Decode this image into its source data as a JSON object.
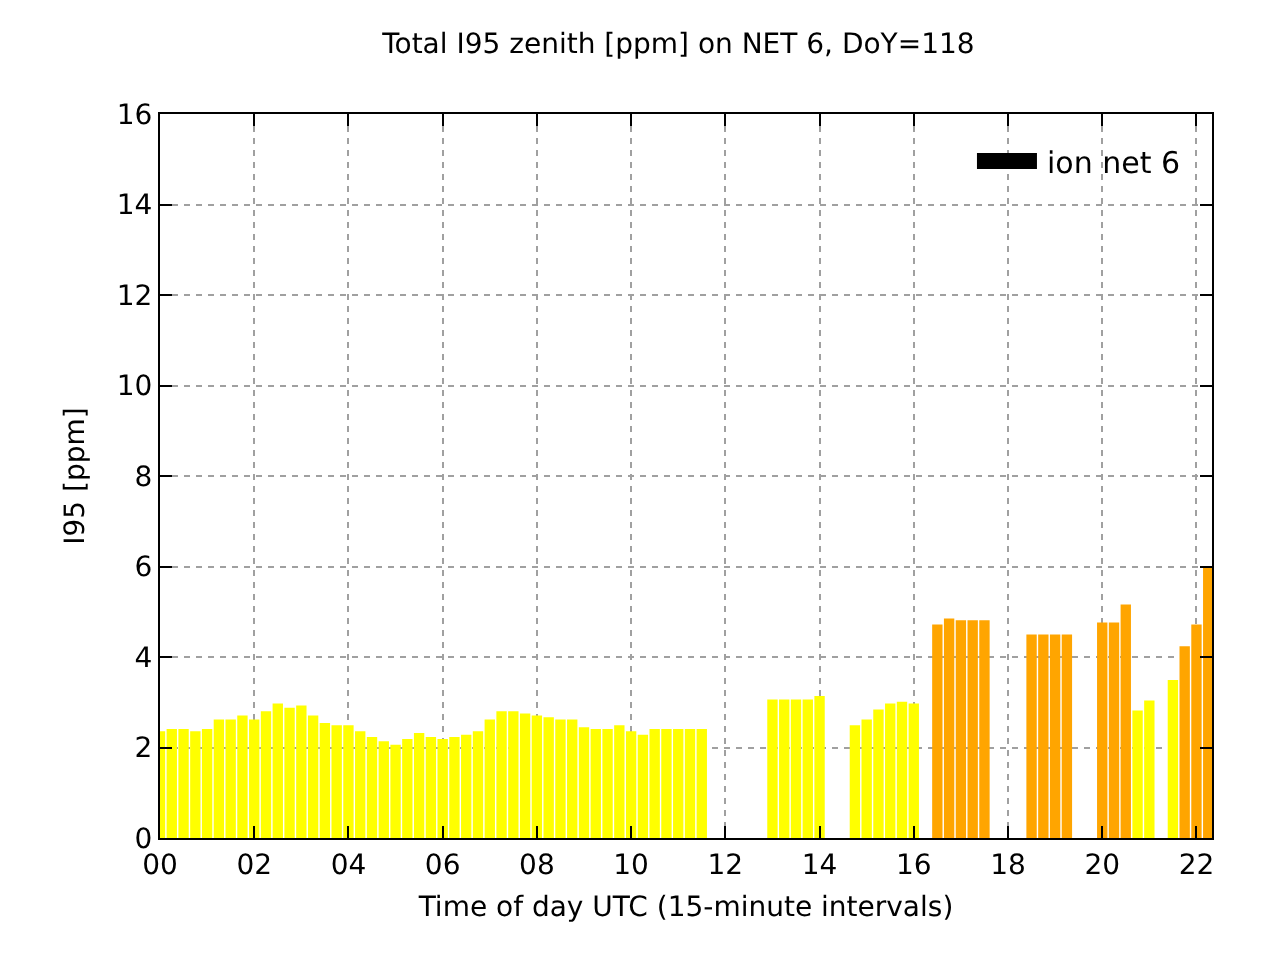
{
  "chart_data": {
    "type": "bar",
    "title": "Total I95 zenith [ppm] on NET 6, DoY=118",
    "xlabel": "Time of day UTC (15-minute intervals)",
    "ylabel": "I95 [ppm]",
    "xlim": [
      0,
      22.33
    ],
    "xticks": [
      {
        "value": 0,
        "label": "00"
      },
      {
        "value": 2,
        "label": "02"
      },
      {
        "value": 4,
        "label": "04"
      },
      {
        "value": 6,
        "label": "06"
      },
      {
        "value": 8,
        "label": "08"
      },
      {
        "value": 10,
        "label": "10"
      },
      {
        "value": 12,
        "label": "12"
      },
      {
        "value": 14,
        "label": "14"
      },
      {
        "value": 16,
        "label": "16"
      },
      {
        "value": 18,
        "label": "18"
      },
      {
        "value": 20,
        "label": "20"
      },
      {
        "value": 22,
        "label": "22"
      }
    ],
    "ylim": [
      0,
      16
    ],
    "yticks": [
      0,
      2,
      4,
      6,
      8,
      10,
      12,
      14,
      16
    ],
    "grid": true,
    "legend": "top right",
    "series": [
      {
        "name": "ion net 6",
        "color": "#000000",
        "x": [
          0,
          0.25,
          0.5,
          0.75,
          1,
          1.25,
          1.5,
          1.75,
          2,
          2.25,
          2.5,
          2.75,
          3,
          3.25,
          3.5,
          3.75,
          4,
          4.25,
          4.5,
          4.75,
          5,
          5.25,
          5.5,
          5.75,
          6,
          6.25,
          6.5,
          6.75,
          7,
          7.25,
          7.5,
          7.75,
          8,
          8.25,
          8.5,
          8.75,
          9,
          9.25,
          9.5,
          9.75,
          10,
          10.25,
          10.5,
          10.75,
          11,
          11.25,
          11.5,
          13,
          13.25,
          13.5,
          13.75,
          14,
          14.75,
          15,
          15.25,
          15.5,
          15.75,
          16,
          16.5,
          16.75,
          17,
          17.25,
          17.5,
          18.5,
          18.75,
          19,
          19.25,
          20,
          20.25,
          20.5,
          20.75,
          21,
          21.5,
          21.75,
          22,
          22.25
        ],
        "values": [
          2.36,
          2.41,
          2.41,
          2.36,
          2.41,
          2.62,
          2.62,
          2.71,
          2.62,
          2.8,
          2.97,
          2.88,
          2.93,
          2.71,
          2.54,
          2.49,
          2.49,
          2.36,
          2.23,
          2.14,
          2.06,
          2.19,
          2.32,
          2.23,
          2.19,
          2.23,
          2.28,
          2.36,
          2.62,
          2.8,
          2.8,
          2.75,
          2.71,
          2.67,
          2.62,
          2.62,
          2.45,
          2.41,
          2.41,
          2.49,
          2.36,
          2.28,
          2.41,
          2.41,
          2.41,
          2.41,
          2.41,
          3.06,
          3.06,
          3.06,
          3.06,
          3.14,
          2.49,
          2.62,
          2.84,
          2.97,
          3.01,
          2.97,
          4.72,
          4.85,
          4.81,
          4.81,
          4.81,
          4.5,
          4.5,
          4.5,
          4.5,
          4.76,
          4.76,
          5.16,
          2.82,
          3.04,
          3.49,
          4.24,
          4.72,
          5.99
        ],
        "colors": [
          "#ffff00",
          "#ffff00",
          "#ffff00",
          "#ffff00",
          "#ffff00",
          "#ffff00",
          "#ffff00",
          "#ffff00",
          "#ffff00",
          "#ffff00",
          "#ffff00",
          "#ffff00",
          "#ffff00",
          "#ffff00",
          "#ffff00",
          "#ffff00",
          "#ffff00",
          "#ffff00",
          "#ffff00",
          "#ffff00",
          "#ffff00",
          "#ffff00",
          "#ffff00",
          "#ffff00",
          "#ffff00",
          "#ffff00",
          "#ffff00",
          "#ffff00",
          "#ffff00",
          "#ffff00",
          "#ffff00",
          "#ffff00",
          "#ffff00",
          "#ffff00",
          "#ffff00",
          "#ffff00",
          "#ffff00",
          "#ffff00",
          "#ffff00",
          "#ffff00",
          "#ffff00",
          "#ffff00",
          "#ffff00",
          "#ffff00",
          "#ffff00",
          "#ffff00",
          "#ffff00",
          "#ffff00",
          "#ffff00",
          "#ffff00",
          "#ffff00",
          "#ffff00",
          "#ffff00",
          "#ffff00",
          "#ffff00",
          "#ffff00",
          "#ffff00",
          "#ffff00",
          "#ffa500",
          "#ffa500",
          "#ffa500",
          "#ffa500",
          "#ffa500",
          "#ffa500",
          "#ffa500",
          "#ffa500",
          "#ffa500",
          "#ffa500",
          "#ffa500",
          "#ffa500",
          "#ffff00",
          "#ffff00",
          "#ffff00",
          "#ffa500",
          "#ffa500",
          "#ffa500"
        ]
      }
    ]
  }
}
